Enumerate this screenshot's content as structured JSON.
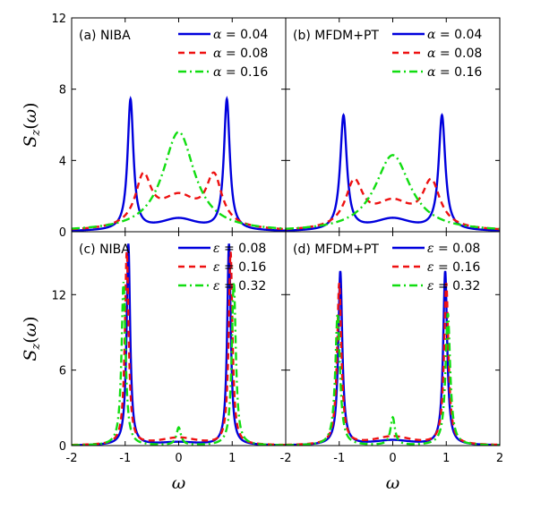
{
  "chart_data": [
    {
      "type": "line",
      "panel": "a",
      "title": "(a) NIBA",
      "xlabel": "",
      "ylabel": "S_z(ω)",
      "xlim": [
        -2,
        2
      ],
      "ylim": [
        0,
        12
      ],
      "yticks": [
        "0",
        "4",
        "8",
        "12"
      ],
      "xticks": [],
      "legend_position": "top-right",
      "series": [
        {
          "name": "α = 0.04",
          "sym": "α",
          "val": "0.04",
          "color": "#0000dd",
          "dash": "solid",
          "peak_x": 0.9,
          "peak_h": 7.3,
          "gamma": 0.066,
          "w": 0.0,
          "dip": 0.7
        },
        {
          "name": "α = 0.08",
          "sym": "α",
          "val": "0.08",
          "color": "#ee1111",
          "dash": "dashed",
          "peak_x": 0.66,
          "peak_h": 2.7,
          "gamma": 0.18,
          "w": 0.0,
          "dip": 1.8
        },
        {
          "name": "α = 0.16",
          "sym": "α",
          "val": "0.16",
          "color": "#11dd11",
          "dash": "dashdot",
          "peak_x": 0.0,
          "peak_h": 5.6,
          "gamma": 0.36,
          "w": 0.0,
          "dip": 0.0
        }
      ]
    },
    {
      "type": "line",
      "panel": "b",
      "title": "(b) MFDM+PT",
      "xlabel": "",
      "ylabel": "",
      "xlim": [
        -2,
        2
      ],
      "ylim": [
        0,
        12
      ],
      "yticks": [],
      "xticks": [],
      "legend_position": "top-right",
      "series": [
        {
          "name": "α = 0.04",
          "sym": "α",
          "val": "0.04",
          "color": "#0000dd",
          "dash": "solid",
          "peak_x": 0.92,
          "peak_h": 6.4,
          "gamma": 0.075,
          "w": 0.0,
          "dip": 0.7
        },
        {
          "name": "α = 0.08",
          "sym": "α",
          "val": "0.08",
          "color": "#ee1111",
          "dash": "dashed",
          "peak_x": 0.72,
          "peak_h": 2.5,
          "gamma": 0.2,
          "w": 0.0,
          "dip": 1.5
        },
        {
          "name": "α = 0.16",
          "sym": "α",
          "val": "0.16",
          "color": "#11dd11",
          "dash": "dashdot",
          "peak_x": 0.0,
          "peak_h": 4.3,
          "gamma": 0.4,
          "w": 0.0,
          "dip": 0.0
        }
      ]
    },
    {
      "type": "line",
      "panel": "c",
      "title": "(c) NIBA",
      "xlabel": "ω",
      "ylabel": "S_z(ω)",
      "xlim": [
        -2,
        2
      ],
      "ylim": [
        0,
        17
      ],
      "yticks": [
        "0",
        "6",
        "12"
      ],
      "xticks": [
        "-2",
        "-1",
        "0",
        "1"
      ],
      "legend_position": "top-right",
      "series": [
        {
          "name": "ε = 0.08",
          "sym": "ε",
          "val": "0.08",
          "color": "#0000dd",
          "dash": "solid",
          "peak_x": 0.94,
          "peak_h": 16.0,
          "gamma": 0.04,
          "w": 0.0,
          "dip": 0.25
        },
        {
          "name": "ε = 0.16",
          "sym": "ε",
          "val": "0.16",
          "color": "#ee1111",
          "dash": "dashed",
          "peak_x": 0.97,
          "peak_h": 15.3,
          "gamma": 0.042,
          "w": 0.0,
          "dip": 0.6
        },
        {
          "name": "ε = 0.32",
          "sym": "ε",
          "val": "0.32",
          "color": "#11dd11",
          "dash": "dashdot",
          "peak_x": 1.03,
          "peak_h": 13.0,
          "gamma": 0.045,
          "w": 1.4,
          "dip": 0.0
        }
      ]
    },
    {
      "type": "line",
      "panel": "d",
      "title": "(d) MFDM+PT",
      "xlabel": "ω",
      "ylabel": "",
      "xlim": [
        -2,
        2
      ],
      "ylim": [
        0,
        17
      ],
      "yticks": [],
      "xticks": [
        "-2",
        "-1",
        "0",
        "1",
        "2"
      ],
      "legend_position": "top-right",
      "series": [
        {
          "name": "ε = 0.08",
          "sym": "ε",
          "val": "0.08",
          "color": "#0000dd",
          "dash": "solid",
          "peak_x": 0.98,
          "peak_h": 13.8,
          "gamma": 0.045,
          "w": 0.0,
          "dip": 0.4
        },
        {
          "name": "ε = 0.16",
          "sym": "ε",
          "val": "0.16",
          "color": "#ee1111",
          "dash": "dashed",
          "peak_x": 1.0,
          "peak_h": 12.8,
          "gamma": 0.048,
          "w": 0.0,
          "dip": 0.7
        },
        {
          "name": "ε = 0.32",
          "sym": "ε",
          "val": "0.32",
          "color": "#11dd11",
          "dash": "dashdot",
          "peak_x": 1.03,
          "peak_h": 10.5,
          "gamma": 0.052,
          "w": 2.2,
          "dip": 0.0
        }
      ]
    }
  ]
}
